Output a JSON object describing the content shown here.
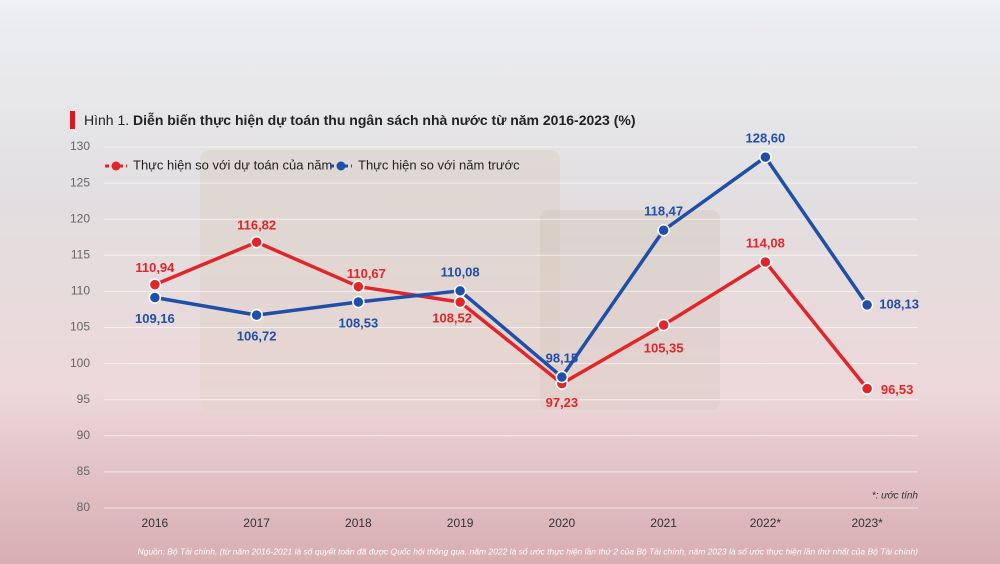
{
  "chart_data": {
    "type": "line",
    "title": {
      "number": "Hình 1.",
      "text": "Diễn biến thực hiện dự toán thu ngân sách nhà nước từ năm 2016-2023 (%)"
    },
    "categories": [
      "2016",
      "2017",
      "2018",
      "2019",
      "2020",
      "2021",
      "2022*",
      "2023*"
    ],
    "series": [
      {
        "name": "Thực hiện so với dự toán của năm",
        "color": "#e0262b",
        "values": [
          110.94,
          116.82,
          110.67,
          108.52,
          97.23,
          105.35,
          114.08,
          96.53
        ],
        "value_labels": [
          "110,94",
          "116,82",
          "110,67",
          "108,52",
          "97,23",
          "105,35",
          "114,08",
          "96,53"
        ]
      },
      {
        "name": "Thực hiện so với năm trước",
        "color": "#1f4fa8",
        "values": [
          109.16,
          106.72,
          108.53,
          110.08,
          98.15,
          118.47,
          128.6,
          108.13
        ],
        "value_labels": [
          "109,16",
          "106,72",
          "108,53",
          "110,08",
          "98,15",
          "118,47",
          "128,60",
          "108,13"
        ]
      }
    ],
    "ylim": [
      80,
      130
    ],
    "yticks": [
      80,
      85,
      90,
      95,
      100,
      105,
      110,
      115,
      120,
      125,
      130
    ],
    "grid": true,
    "legend": "top-left",
    "note": "*: ước tính",
    "source": "Nguồn: Bộ Tài chính, (từ năm 2016-2021 là số quyết toán đã được Quốc hội thông qua, năm 2022 là số ước thực hiện lần thứ 2 của Bộ Tài chính, năm 2023 là số ước thực hiện lần thứ nhất của Bộ Tài chính)"
  }
}
